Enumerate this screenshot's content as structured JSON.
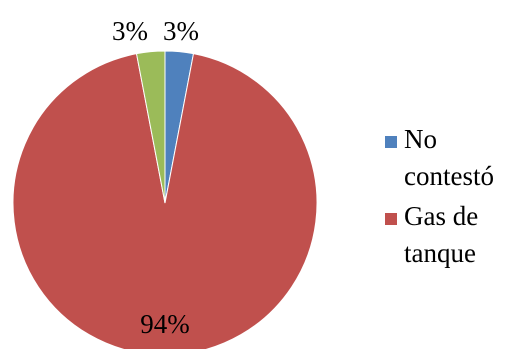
{
  "chart_data": {
    "type": "pie",
    "slices": [
      {
        "label": "No contestó",
        "value": 3,
        "color": "#4F81BD"
      },
      {
        "label": "Gas de tanque",
        "value": 94,
        "color": "#C0504D"
      },
      {
        "label": "",
        "value": 3,
        "color": "#9BBB59"
      }
    ],
    "data_labels": [
      "3%",
      "94%",
      "3%"
    ],
    "legend": {
      "position": "right",
      "entries": [
        {
          "lines": [
            "No",
            "contestó"
          ],
          "color": "#4F81BD"
        },
        {
          "lines": [
            "Gas de",
            "tanque"
          ],
          "color": "#C0504D"
        }
      ]
    }
  }
}
